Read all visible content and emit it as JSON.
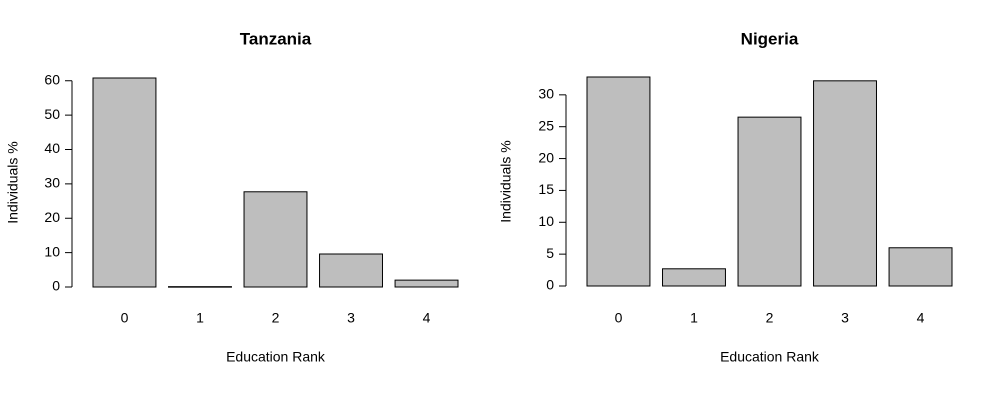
{
  "chart_data": [
    {
      "type": "bar",
      "title": "Tanzania",
      "x_label": "Education Rank",
      "y_label": "Individuals %",
      "categories": [
        "0",
        "1",
        "2",
        "3",
        "4"
      ],
      "values": [
        60.8,
        0.1,
        27.7,
        9.6,
        2.0
      ],
      "color": "#bebebe",
      "ylim": [
        0,
        60.8
      ],
      "yticks": [
        0,
        10,
        20,
        30,
        40,
        50,
        60
      ]
    },
    {
      "type": "bar",
      "title": "Nigeria",
      "x_label": "Education Rank",
      "y_label": "Individuals %",
      "categories": [
        "0",
        "1",
        "2",
        "3",
        "4"
      ],
      "values": [
        32.8,
        2.7,
        26.5,
        32.2,
        6.0
      ],
      "color": "#bebebe",
      "ylim": [
        0,
        32.8
      ],
      "yticks": [
        0,
        5,
        10,
        15,
        20,
        25,
        30
      ]
    }
  ]
}
